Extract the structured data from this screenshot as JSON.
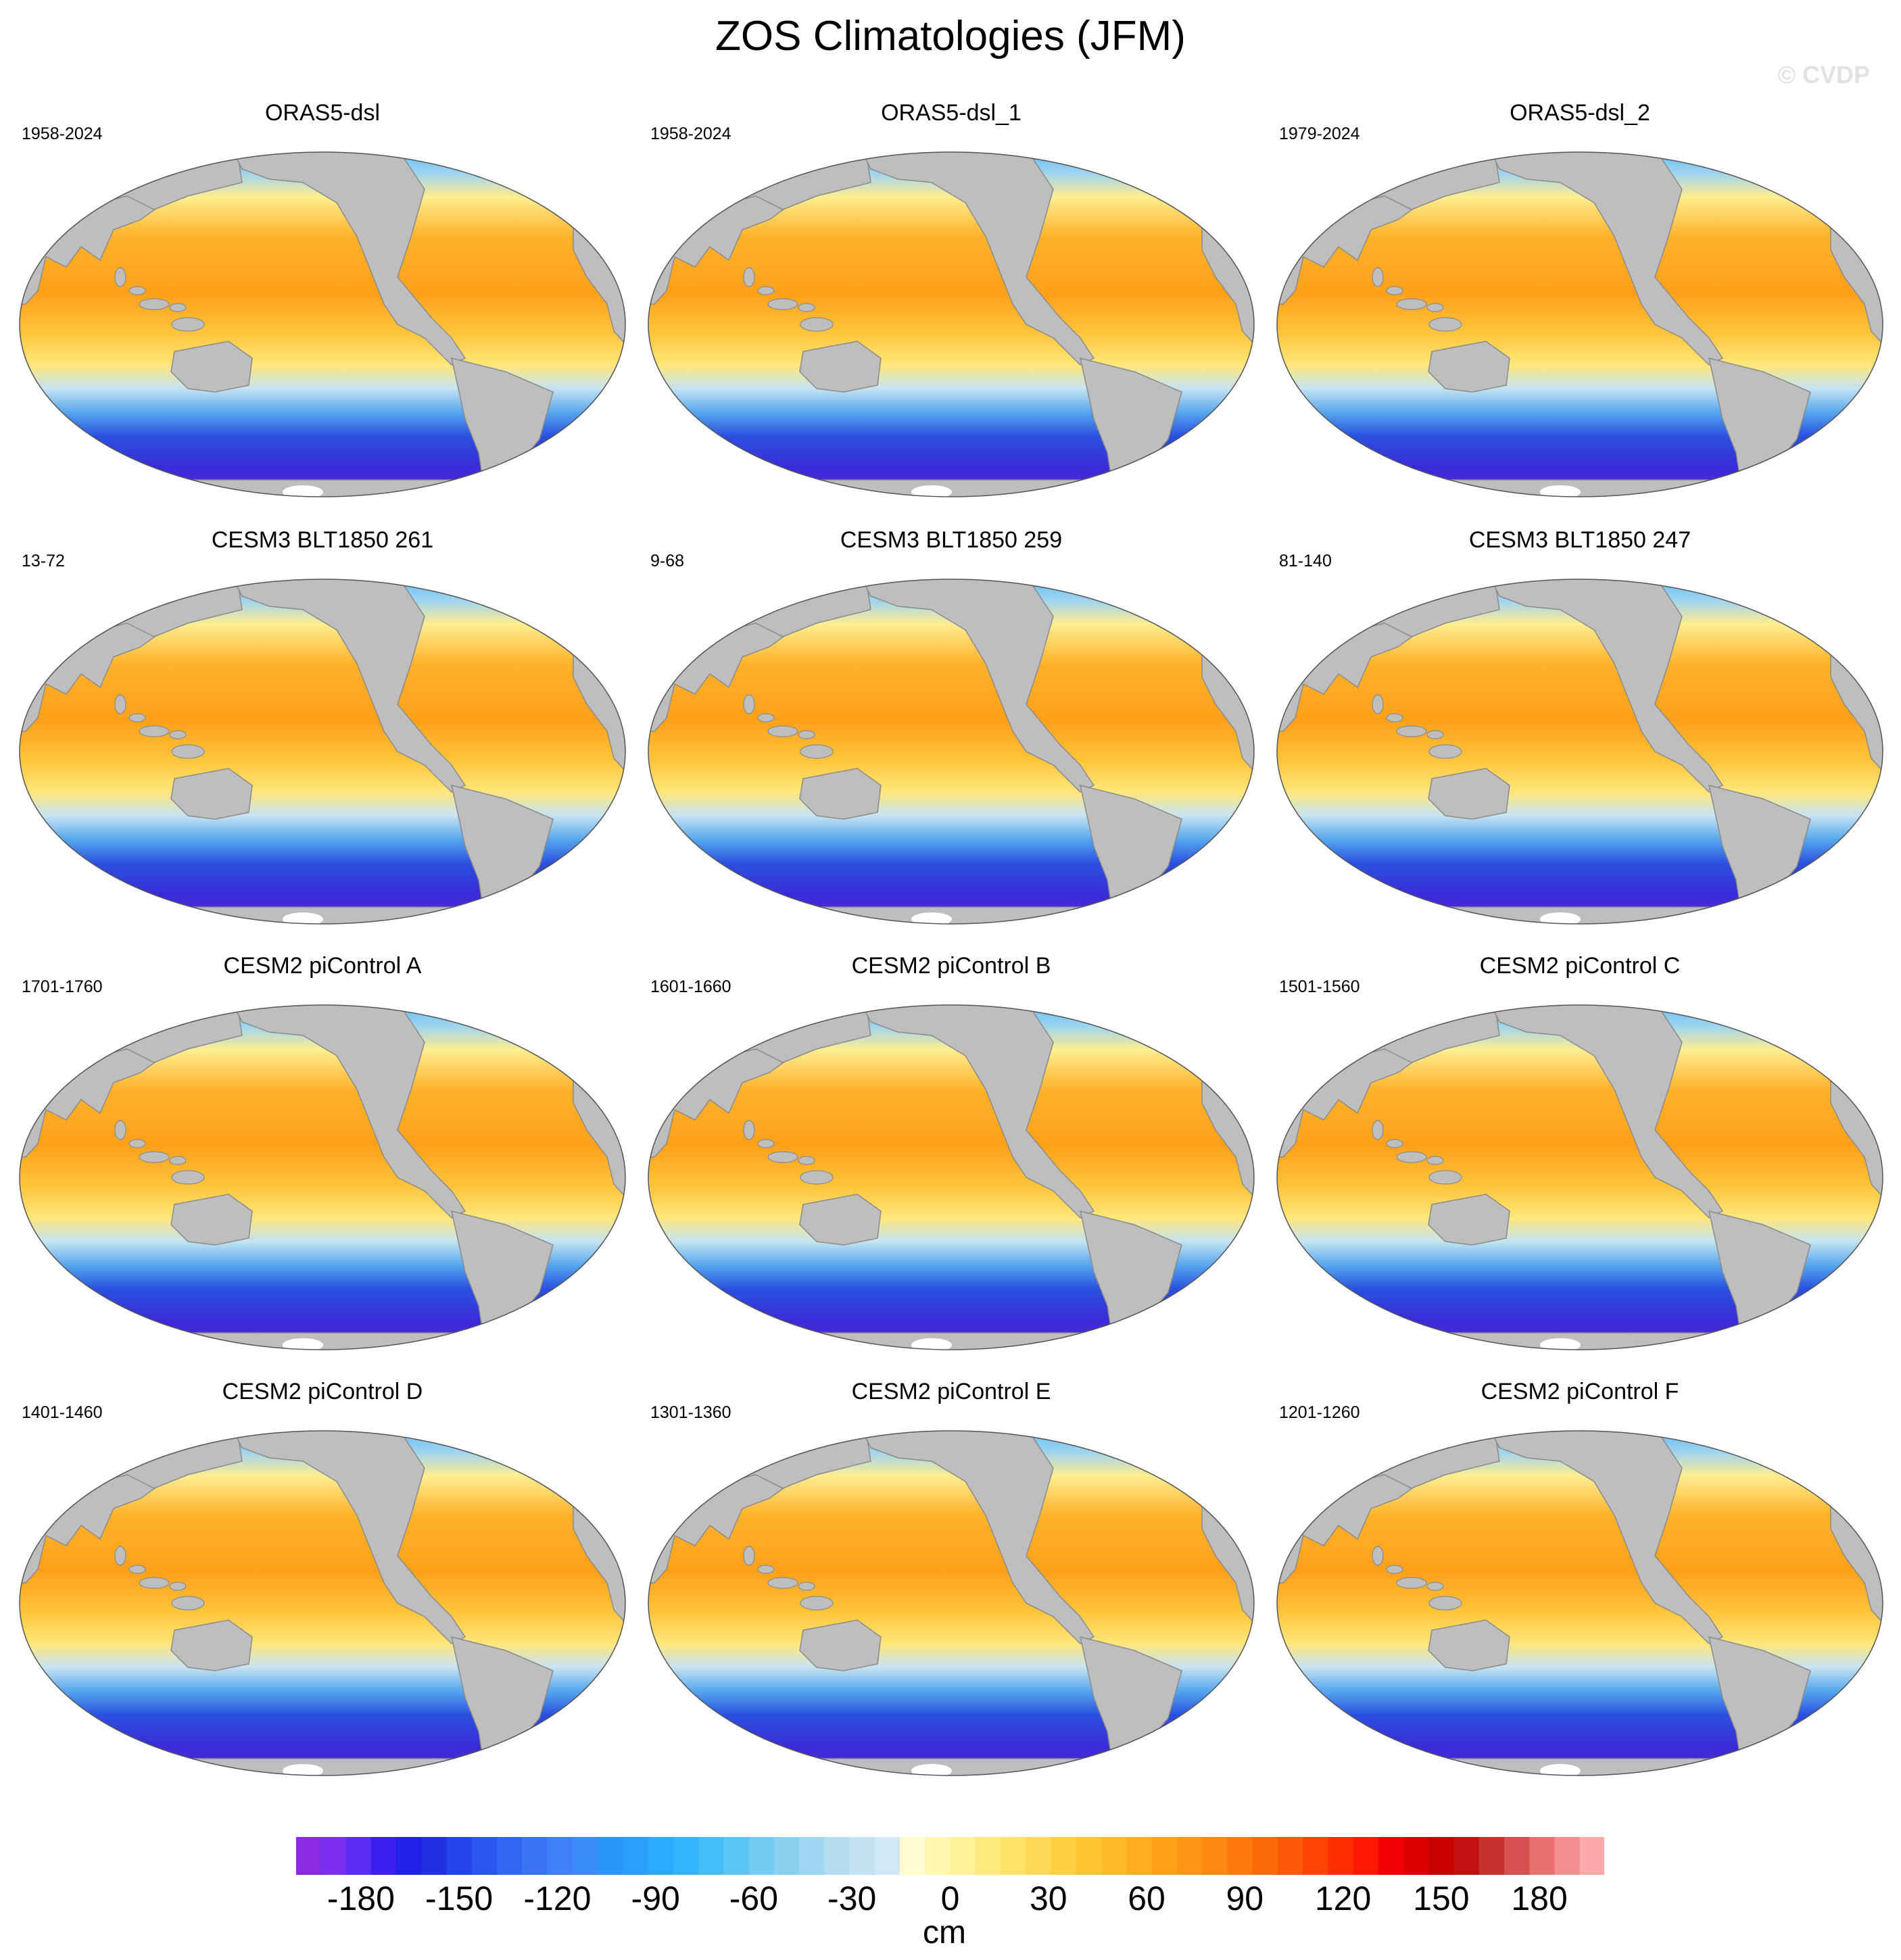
{
  "title": "ZOS Climatologies (JFM)",
  "watermark": "© CVDP",
  "panels": [
    {
      "name": "ORAS5-dsl",
      "years": "1958-2024"
    },
    {
      "name": "ORAS5-dsl_1",
      "years": "1958-2024"
    },
    {
      "name": "ORAS5-dsl_2",
      "years": "1979-2024"
    },
    {
      "name": "CESM3 BLT1850 261",
      "years": "13-72"
    },
    {
      "name": "CESM3 BLT1850 259",
      "years": "9-68"
    },
    {
      "name": "CESM3 BLT1850 247",
      "years": "81-140"
    },
    {
      "name": "CESM2 piControl A",
      "years": "1701-1760"
    },
    {
      "name": "CESM2 piControl B",
      "years": "1601-1660"
    },
    {
      "name": "CESM2 piControl C",
      "years": "1501-1560"
    },
    {
      "name": "CESM2 piControl D",
      "years": "1401-1460"
    },
    {
      "name": "CESM2 piControl E",
      "years": "1301-1360"
    },
    {
      "name": "CESM2 piControl F",
      "years": "1201-1260"
    }
  ],
  "colorbar": {
    "units": "cm",
    "range": [
      -200,
      200
    ],
    "tick_labels": [
      "-180",
      "-150",
      "-120",
      "-90",
      "-60",
      "-30",
      "0",
      "30",
      "60",
      "90",
      "120",
      "150",
      "180"
    ],
    "colors": [
      "#8a2be2",
      "#7a2ff0",
      "#5a2cf5",
      "#3a1ef0",
      "#2020e8",
      "#2030e0",
      "#2244e8",
      "#2a55ee",
      "#3366f2",
      "#3a74f5",
      "#3f80f8",
      "#3a8cfa",
      "#2a95fb",
      "#2a9ffc",
      "#2aaafd",
      "#33b4fb",
      "#45bdf7",
      "#5bc6f3",
      "#72cbf0",
      "#8ad1ef",
      "#9fd7f0",
      "#b2ddf1",
      "#c3e3f3",
      "#d2e8f4",
      "#fffbd0",
      "#fff6b0",
      "#fff199",
      "#ffea80",
      "#ffe26a",
      "#ffd955",
      "#ffcf40",
      "#ffc533",
      "#ffba28",
      "#ffae20",
      "#ffa21a",
      "#ff9514",
      "#ff8810",
      "#ff7a0c",
      "#ff6a08",
      "#ff5806",
      "#ff4404",
      "#ff2e02",
      "#ff1800",
      "#f00000",
      "#dd0000",
      "#c80000",
      "#c01010",
      "#c83030",
      "#d85050",
      "#e87070",
      "#f39090",
      "#faaaaa"
    ]
  }
}
